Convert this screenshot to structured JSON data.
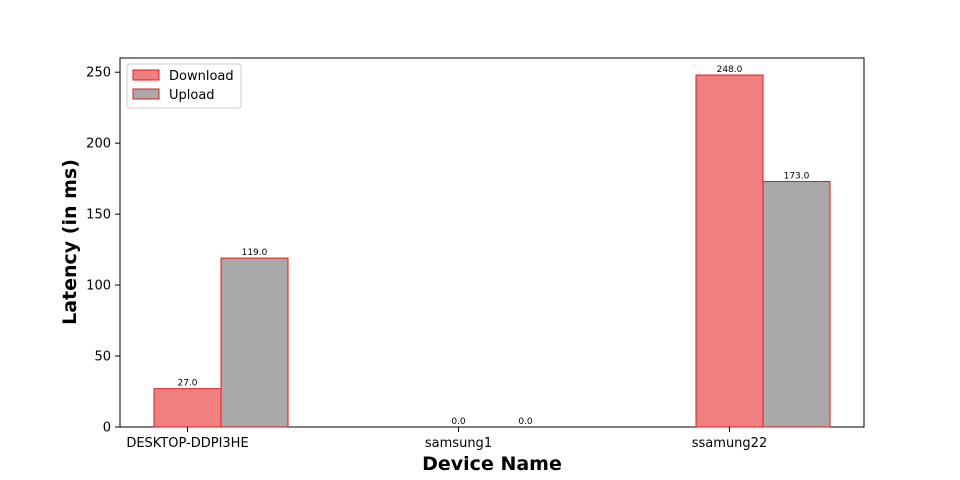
{
  "chart_data": {
    "type": "bar",
    "categories": [
      "DESKTOP-DDPI3HE",
      "samsung1",
      "ssamung22"
    ],
    "series": [
      {
        "name": "Download",
        "values": [
          27.0,
          0.0,
          248.0
        ],
        "color": "#f08080"
      },
      {
        "name": "Upload",
        "values": [
          119.0,
          0.0,
          173.0
        ],
        "color": "#a9a9a9"
      }
    ],
    "data_labels": {
      "Download": [
        "27.0",
        "0.0",
        "248.0"
      ],
      "Upload": [
        "119.0",
        "0.0",
        "173.0"
      ]
    },
    "edge_color": "#e31a1c",
    "xlabel": "Device Name",
    "ylabel": "Latency (in ms)",
    "ylim": [
      0,
      260
    ],
    "yticks": [
      0,
      50,
      100,
      150,
      200,
      250
    ],
    "legend_position": "upper-left",
    "grid": false
  }
}
